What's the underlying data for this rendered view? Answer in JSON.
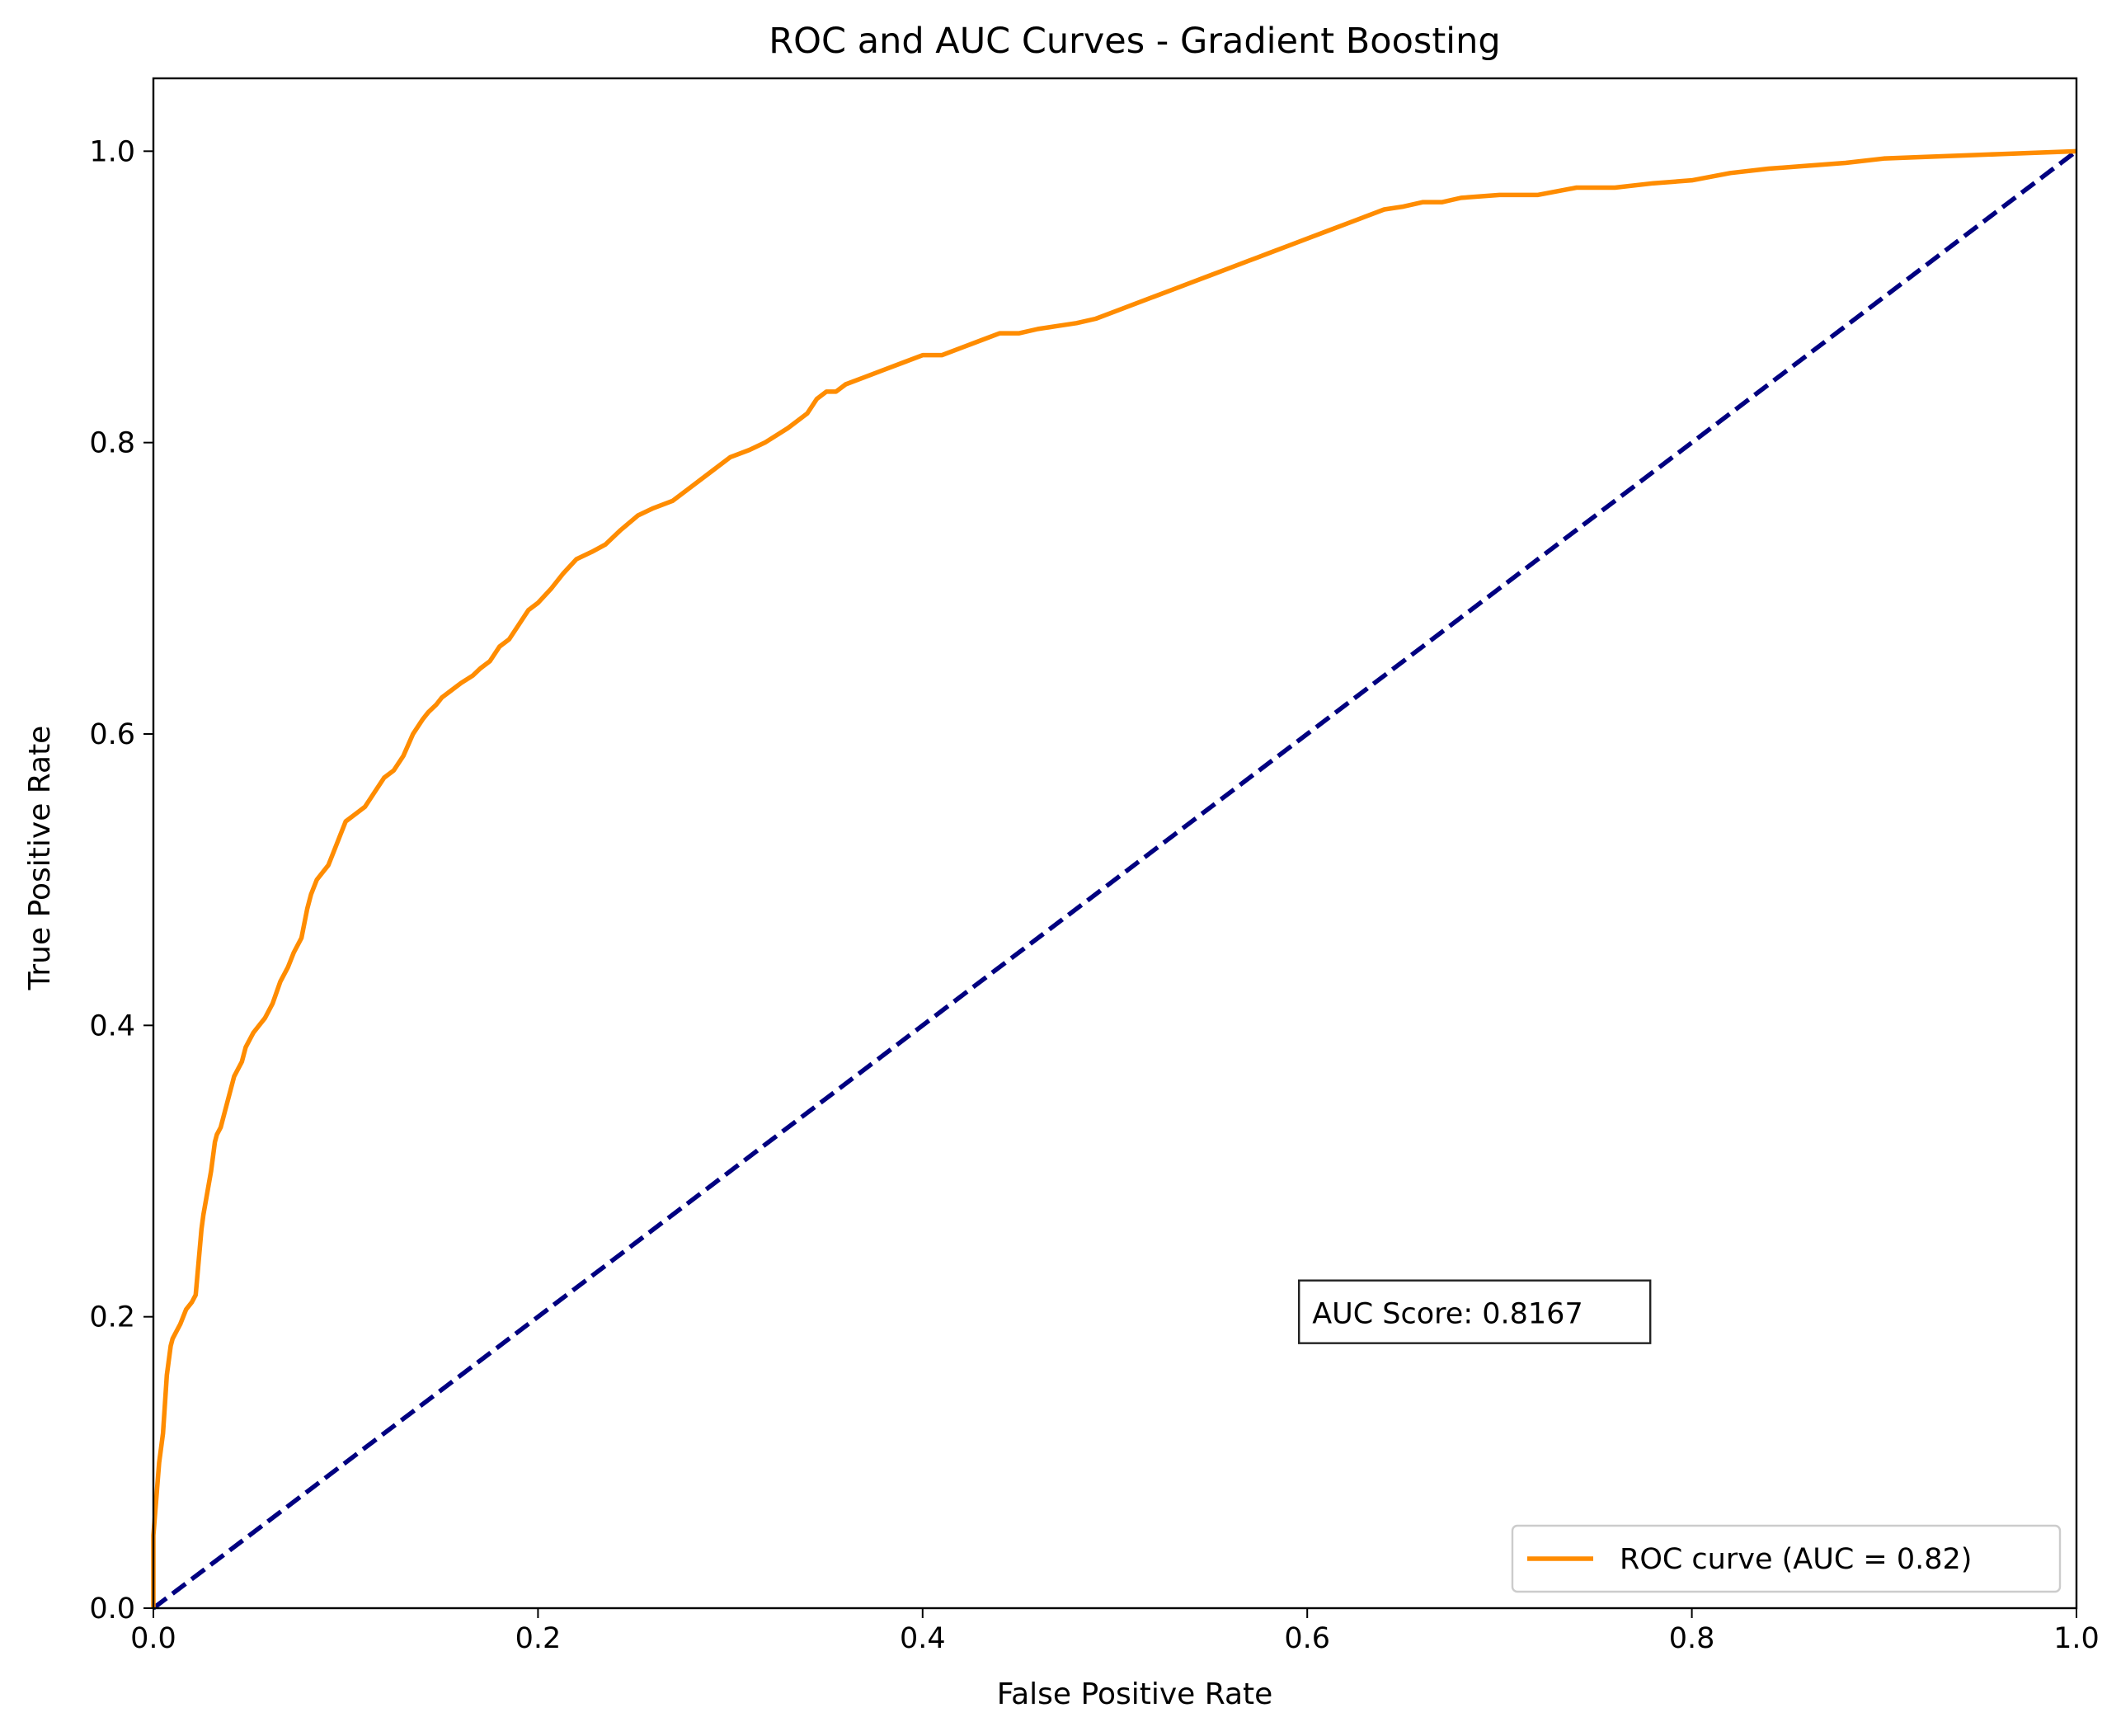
{
  "chart_data": {
    "type": "line",
    "title": "ROC and AUC Curves - Gradient Boosting",
    "xlabel": "False Positive Rate",
    "ylabel": "True Positive Rate",
    "xlim": [
      0.0,
      1.0
    ],
    "ylim": [
      0.0,
      1.05
    ],
    "xticks": [
      0.0,
      0.2,
      0.4,
      0.6,
      0.8,
      1.0
    ],
    "xtick_labels": [
      "0.0",
      "0.2",
      "0.4",
      "0.6",
      "0.8",
      "1.0"
    ],
    "yticks": [
      0.0,
      0.2,
      0.4,
      0.6,
      0.8,
      1.0
    ],
    "ytick_labels": [
      "0.0",
      "0.2",
      "0.4",
      "0.6",
      "0.8",
      "1.0"
    ],
    "grid": false,
    "legend": {
      "position": "lower-right",
      "entries": [
        "ROC curve (AUC = 0.82)"
      ]
    },
    "annotation": "AUC Score: 0.8167",
    "series": [
      {
        "name": "ROC curve (AUC = 0.82)",
        "color": "#ff8c00",
        "style": "solid",
        "x": [
          0.0,
          0.0,
          0.003,
          0.005,
          0.007,
          0.009,
          0.01,
          0.012,
          0.014,
          0.017,
          0.02,
          0.022,
          0.025,
          0.026,
          0.028,
          0.03,
          0.032,
          0.033,
          0.035,
          0.037,
          0.04,
          0.042,
          0.044,
          0.046,
          0.048,
          0.05,
          0.052,
          0.055,
          0.058,
          0.062,
          0.066,
          0.07,
          0.073,
          0.077,
          0.08,
          0.082,
          0.085,
          0.088,
          0.091,
          0.094,
          0.097,
          0.1,
          0.105,
          0.11,
          0.115,
          0.12,
          0.125,
          0.13,
          0.135,
          0.14,
          0.143,
          0.147,
          0.15,
          0.155,
          0.16,
          0.166,
          0.17,
          0.175,
          0.18,
          0.185,
          0.19,
          0.195,
          0.2,
          0.207,
          0.213,
          0.22,
          0.228,
          0.235,
          0.243,
          0.252,
          0.26,
          0.27,
          0.28,
          0.29,
          0.3,
          0.31,
          0.318,
          0.33,
          0.34,
          0.345,
          0.35,
          0.355,
          0.36,
          0.37,
          0.38,
          0.39,
          0.4,
          0.41,
          0.42,
          0.43,
          0.44,
          0.45,
          0.46,
          0.47,
          0.48,
          0.49,
          0.5,
          0.51,
          0.52,
          0.53,
          0.54,
          0.55,
          0.56,
          0.57,
          0.58,
          0.59,
          0.6,
          0.61,
          0.62,
          0.63,
          0.64,
          0.65,
          0.66,
          0.67,
          0.68,
          0.7,
          0.72,
          0.74,
          0.76,
          0.78,
          0.8,
          0.82,
          0.84,
          0.86,
          0.88,
          0.9,
          0.92,
          0.94,
          0.96,
          0.98,
          1.0
        ],
        "y": [
          0.0,
          0.05,
          0.1,
          0.12,
          0.16,
          0.18,
          0.185,
          0.19,
          0.195,
          0.205,
          0.21,
          0.215,
          0.26,
          0.27,
          0.285,
          0.3,
          0.32,
          0.325,
          0.33,
          0.34,
          0.355,
          0.365,
          0.37,
          0.375,
          0.385,
          0.39,
          0.395,
          0.4,
          0.405,
          0.415,
          0.43,
          0.44,
          0.45,
          0.46,
          0.48,
          0.49,
          0.5,
          0.505,
          0.51,
          0.52,
          0.53,
          0.54,
          0.545,
          0.55,
          0.56,
          0.57,
          0.575,
          0.585,
          0.6,
          0.61,
          0.615,
          0.62,
          0.625,
          0.63,
          0.635,
          0.64,
          0.645,
          0.65,
          0.66,
          0.665,
          0.675,
          0.685,
          0.69,
          0.7,
          0.71,
          0.72,
          0.725,
          0.73,
          0.74,
          0.75,
          0.755,
          0.76,
          0.77,
          0.78,
          0.79,
          0.795,
          0.8,
          0.81,
          0.82,
          0.83,
          0.835,
          0.835,
          0.84,
          0.845,
          0.85,
          0.855,
          0.86,
          0.86,
          0.865,
          0.87,
          0.875,
          0.875,
          0.878,
          0.88,
          0.882,
          0.885,
          0.89,
          0.895,
          0.9,
          0.905,
          0.91,
          0.915,
          0.92,
          0.925,
          0.93,
          0.935,
          0.94,
          0.945,
          0.95,
          0.955,
          0.96,
          0.962,
          0.965,
          0.965,
          0.968,
          0.97,
          0.97,
          0.975,
          0.975,
          0.978,
          0.98,
          0.985,
          0.988,
          0.99,
          0.992,
          0.995,
          0.996,
          0.997,
          0.998,
          0.999,
          1.0
        ]
      },
      {
        "name": "",
        "color": "#000080",
        "style": "dashed",
        "x": [
          0.0,
          1.0
        ],
        "y": [
          0.0,
          1.0
        ]
      }
    ]
  }
}
